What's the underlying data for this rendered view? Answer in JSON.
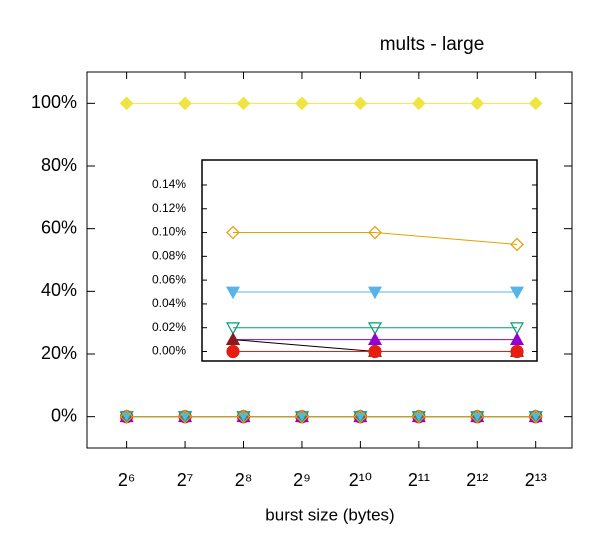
{
  "chart_data": [
    {
      "type": "line",
      "title": "mults - large",
      "x_label": "burst size (bytes)",
      "xscale": "log2",
      "x": [
        64,
        128,
        256,
        512,
        1024,
        2048,
        4096,
        8192
      ],
      "xlim": [
        40,
        12600
      ],
      "xticks": [
        {
          "value": 64,
          "label": "2⁶"
        },
        {
          "value": 128,
          "label": "2⁷"
        },
        {
          "value": 256,
          "label": "2⁸"
        },
        {
          "value": 512,
          "label": "2⁹"
        },
        {
          "value": 1024,
          "label": "2¹⁰"
        },
        {
          "value": 2048,
          "label": "2¹¹"
        },
        {
          "value": 4096,
          "label": "2¹²"
        },
        {
          "value": 8192,
          "label": "2¹³"
        }
      ],
      "ylim": [
        -10,
        110
      ],
      "yticks": [
        {
          "value": 0,
          "label": "0%"
        },
        {
          "value": 20,
          "label": "20%"
        },
        {
          "value": 40,
          "label": "40%"
        },
        {
          "value": 60,
          "label": "60%"
        },
        {
          "value": 80,
          "label": "80%"
        },
        {
          "value": 100,
          "label": "100%"
        }
      ],
      "series": [
        {
          "color": "#f0e442",
          "marker": "diamond",
          "filled": true,
          "values": [
            100,
            100,
            100,
            100,
            100,
            100,
            100,
            100
          ]
        },
        {
          "color": "#e51e10",
          "marker": "circle",
          "filled": true,
          "values": [
            0,
            0,
            0,
            0,
            0,
            0,
            0,
            0
          ]
        },
        {
          "color": "#9400d3",
          "marker": "triangle-up",
          "filled": true,
          "values": [
            0,
            0,
            0,
            0,
            0,
            0,
            0,
            0
          ]
        },
        {
          "color": "#56b4e9",
          "marker": "triangle-down",
          "filled": true,
          "values": [
            0,
            0,
            0,
            0,
            0,
            0,
            0,
            0
          ]
        },
        {
          "color": "#009e73",
          "marker": "triangle-down",
          "filled": false,
          "values": [
            0,
            0,
            0,
            0,
            0,
            0,
            0,
            0
          ]
        },
        {
          "color": "#e69f00",
          "marker": "diamond",
          "filled": false,
          "values": [
            0,
            0,
            0,
            0,
            0,
            0,
            0,
            0
          ]
        }
      ]
    },
    {
      "type": "line",
      "categories": [
        null,
        null,
        null
      ],
      "ylim": [
        -0.008,
        0.161
      ],
      "yticks": [
        {
          "value": 0,
          "label": "0.00%"
        },
        {
          "value": 0.02,
          "label": "0.02%"
        },
        {
          "value": 0.04,
          "label": "0.04%"
        },
        {
          "value": 0.06,
          "label": "0.06%"
        },
        {
          "value": 0.08,
          "label": "0.08%"
        },
        {
          "value": 0.1,
          "label": "0.10%"
        },
        {
          "value": 0.12,
          "label": "0.12%"
        },
        {
          "value": 0.14,
          "label": "0.14%"
        }
      ],
      "series": [
        {
          "color": "#e69f00",
          "marker": "diamond",
          "filled": false,
          "values": [
            0.1,
            0.1,
            0.09
          ]
        },
        {
          "color": "#56b4e9",
          "marker": "triangle-down",
          "filled": true,
          "values": [
            0.05,
            0.05,
            0.05
          ]
        },
        {
          "color": "#009e73",
          "marker": "triangle-down",
          "filled": false,
          "values": [
            0.02,
            0.02,
            0.02
          ]
        },
        {
          "color": "#9400d3",
          "marker": "triangle-up",
          "filled": true,
          "values": [
            0.01,
            0.01,
            0.01
          ]
        },
        {
          "color": "#000000",
          "marker_color": "#8b1a1a",
          "marker": "triangle-up",
          "filled": true,
          "values": [
            0.01,
            0,
            0
          ]
        },
        {
          "color": "#e51e10",
          "marker": "circle",
          "filled": true,
          "values": [
            0,
            0,
            0
          ]
        }
      ]
    }
  ]
}
